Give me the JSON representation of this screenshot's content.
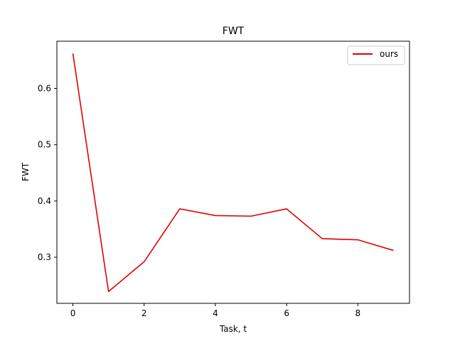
{
  "chart_data": {
    "type": "line",
    "title": "FWT",
    "xlabel": "Task, t",
    "ylabel": "FWT",
    "xlim": [
      -0.45,
      9.45
    ],
    "ylim": [
      0.218,
      0.684
    ],
    "xticks": [
      0,
      2,
      4,
      6,
      8
    ],
    "yticks": [
      0.3,
      0.4,
      0.5,
      0.6
    ],
    "x": [
      0,
      1,
      2,
      3,
      4,
      5,
      6,
      7,
      8,
      9
    ],
    "series": [
      {
        "name": "ours",
        "color": "#e00000",
        "values": [
          0.662,
          0.239,
          0.292,
          0.386,
          0.374,
          0.373,
          0.386,
          0.333,
          0.331,
          0.312
        ]
      }
    ],
    "legend_position": "upper right",
    "grid": false
  }
}
